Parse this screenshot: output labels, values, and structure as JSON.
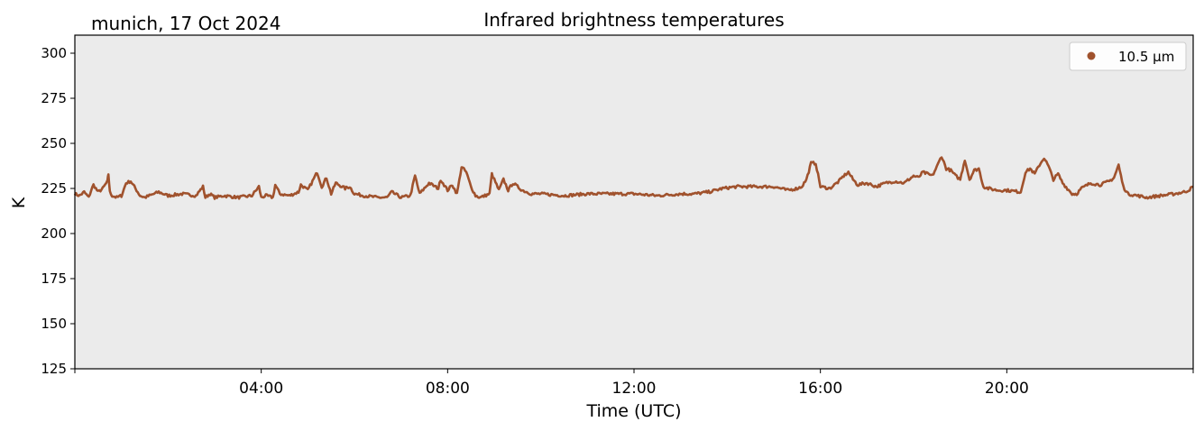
{
  "chart_data": {
    "type": "line",
    "title": "Infrared brightness temperatures",
    "subtitle": "munich, 17 Oct 2024",
    "xlabel": "Time (UTC)",
    "ylabel": "K",
    "xlim_hours": [
      0,
      24
    ],
    "ylim": [
      125,
      310
    ],
    "x_ticks_hours": [
      4,
      8,
      12,
      16,
      20
    ],
    "x_tick_labels": [
      "04:00",
      "08:00",
      "12:00",
      "16:00",
      "20:00"
    ],
    "y_ticks": [
      125,
      150,
      175,
      200,
      225,
      250,
      275,
      300
    ],
    "y_tick_labels": [
      "125",
      "150",
      "175",
      "200",
      "225",
      "250",
      "275",
      "300"
    ],
    "grid": false,
    "legend_position": "top-right",
    "background_color": "#ebebeb",
    "series": [
      {
        "name": "10.5 µm",
        "color": "#a0522d",
        "x_hours": [
          0.0,
          0.1,
          0.2,
          0.3,
          0.35,
          0.4,
          0.5,
          0.6,
          0.7,
          0.72,
          0.75,
          0.8,
          0.9,
          1.0,
          1.1,
          1.2,
          1.4,
          1.5,
          1.6,
          1.8,
          2.0,
          2.3,
          2.6,
          2.75,
          2.8,
          2.9,
          3.0,
          3.2,
          3.5,
          3.8,
          3.95,
          4.0,
          4.1,
          4.25,
          4.3,
          4.4,
          4.6,
          4.8,
          4.85,
          5.0,
          5.1,
          5.2,
          5.3,
          5.4,
          5.5,
          5.6,
          5.8,
          5.9,
          6.0,
          6.2,
          6.5,
          6.7,
          6.8,
          7.0,
          7.2,
          7.3,
          7.4,
          7.6,
          7.8,
          7.85,
          8.0,
          8.1,
          8.2,
          8.3,
          8.4,
          8.5,
          8.6,
          8.7,
          8.9,
          8.95,
          9.1,
          9.2,
          9.3,
          9.4,
          9.6,
          9.8,
          10.0,
          10.5,
          11.0,
          11.5,
          12.0,
          12.5,
          13.0,
          13.3,
          13.6,
          13.9,
          14.2,
          14.5,
          14.8,
          15.0,
          15.3,
          15.5,
          15.6,
          15.7,
          15.8,
          15.9,
          16.0,
          16.2,
          16.4,
          16.5,
          16.6,
          16.7,
          16.8,
          17.0,
          17.2,
          17.4,
          17.6,
          17.8,
          18.0,
          18.1,
          18.2,
          18.4,
          18.5,
          18.6,
          18.7,
          18.8,
          18.9,
          19.0,
          19.1,
          19.2,
          19.3,
          19.4,
          19.5,
          19.6,
          19.8,
          20.0,
          20.3,
          20.4,
          20.5,
          20.6,
          20.7,
          20.8,
          20.9,
          21.0,
          21.1,
          21.2,
          21.4,
          21.5,
          21.6,
          21.8,
          22.0,
          22.2,
          22.3,
          22.4,
          22.5,
          22.6,
          22.8,
          23.0,
          23.3,
          23.6,
          23.8,
          23.9,
          24.0
        ],
        "y_values": [
          222,
          221,
          223,
          220,
          224,
          227,
          223,
          225,
          229,
          233,
          223,
          221,
          220,
          221,
          228,
          229,
          221,
          220,
          221,
          223,
          221,
          222,
          221,
          226,
          220,
          222,
          220,
          221,
          220,
          221,
          226,
          220,
          221,
          220,
          227,
          222,
          221,
          223,
          227,
          224,
          229,
          234,
          226,
          231,
          222,
          228,
          225,
          226,
          222,
          221,
          220,
          220,
          223,
          220,
          221,
          232,
          222,
          228,
          225,
          230,
          224,
          227,
          222,
          237,
          234,
          226,
          221,
          220,
          222,
          233,
          224,
          230,
          224,
          228,
          224,
          222,
          222,
          221,
          222,
          222,
          222,
          221,
          222,
          222,
          223,
          225,
          226,
          226,
          226,
          226,
          224,
          225,
          226,
          230,
          239,
          239,
          226,
          225,
          229,
          232,
          234,
          230,
          227,
          228,
          226,
          228,
          229,
          228,
          232,
          231,
          234,
          232,
          237,
          243,
          236,
          235,
          232,
          230,
          241,
          230,
          235,
          236,
          226,
          225,
          224,
          224,
          223,
          234,
          236,
          233,
          238,
          242,
          237,
          230,
          233,
          228,
          222,
          222,
          225,
          228,
          227,
          229,
          231,
          238,
          226,
          222,
          221,
          220,
          221,
          222,
          223,
          224,
          226
        ]
      }
    ]
  }
}
